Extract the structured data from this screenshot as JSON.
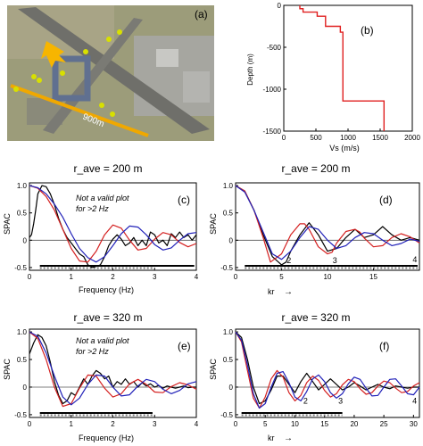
{
  "chart_data": [
    {
      "id": "a",
      "type": "image",
      "panel_label": "(a)",
      "annotation": "900m",
      "colors": {
        "ground": "#9a9a78",
        "runway": "#6f6f6a",
        "array_line": "#f0a800",
        "arrow": "#f7b500",
        "markers": "#d8e000"
      }
    },
    {
      "id": "b",
      "type": "line",
      "panel_label": "(b)",
      "xlabel": "Vs (m/s)",
      "ylabel": "Depth (m)",
      "xlim": [
        0,
        2000
      ],
      "ylim": [
        -1500,
        0
      ],
      "xticks": [
        "0",
        "500",
        "1000",
        "1500",
        "2000"
      ],
      "yticks": [
        "-1500",
        "-1000",
        "-500",
        "0"
      ],
      "color": "#e02020",
      "x": [
        250,
        250,
        300,
        300,
        520,
        520,
        650,
        650,
        880,
        880,
        920,
        920,
        1560,
        1560
      ],
      "y": [
        0,
        -40,
        -40,
        -80,
        -80,
        -130,
        -130,
        -250,
        -250,
        -320,
        -320,
        -1140,
        -1140,
        -1500
      ]
    },
    {
      "id": "c",
      "type": "line",
      "title": "r_ave = 200 m",
      "panel_label": "(c)",
      "note": [
        "Not a valid plot",
        "for >2 Hz"
      ],
      "xlabel": "Frequency (Hz)",
      "ylabel": "SPAC",
      "xlim": [
        0,
        4
      ],
      "ylim": [
        -0.55,
        1.05
      ],
      "xticks": [
        "0",
        "1",
        "2",
        "3",
        "4"
      ],
      "yticks": [
        "-0.5",
        "0",
        "0.5",
        "1.0"
      ],
      "range_bars": [
        [
          0.25,
          3.95
        ],
        [
          0.25,
          2.95
        ]
      ],
      "series": [
        {
          "color": "#000000",
          "x": [
            0.0,
            0.05,
            0.1,
            0.15,
            0.2,
            0.3,
            0.4,
            0.5,
            0.6,
            0.7,
            0.8,
            0.9,
            1.0,
            1.1,
            1.2,
            1.3,
            1.4,
            1.5,
            1.6,
            1.7,
            1.8,
            1.9,
            2.0,
            2.1,
            2.2,
            2.3,
            2.4,
            2.5,
            2.6,
            2.7,
            2.8,
            2.9,
            3.0,
            3.1,
            3.2,
            3.3,
            3.4,
            3.5,
            3.6,
            3.7,
            3.8,
            3.9,
            4.0
          ],
          "y": [
            0.05,
            0.1,
            0.3,
            0.55,
            0.85,
            1.0,
            0.98,
            0.85,
            0.65,
            0.4,
            0.2,
            0.05,
            -0.05,
            -0.15,
            -0.25,
            -0.3,
            -0.45,
            -0.5,
            -0.48,
            -0.45,
            -0.3,
            -0.1,
            0.02,
            0.1,
            0.02,
            -0.1,
            -0.05,
            0.05,
            -0.1,
            0.0,
            -0.1,
            0.15,
            0.1,
            -0.05,
            0.0,
            -0.1,
            0.12,
            0.05,
            0.15,
            0.05,
            0.1,
            0.0,
            0.1
          ]
        },
        {
          "color": "#d42020",
          "x": [
            0.0,
            0.2,
            0.4,
            0.6,
            0.8,
            1.0,
            1.2,
            1.4,
            1.6,
            1.8,
            2.0,
            2.2,
            2.4,
            2.6,
            2.8,
            3.0,
            3.2,
            3.4,
            3.6,
            3.8,
            4.0
          ],
          "y": [
            1.0,
            0.95,
            0.8,
            0.55,
            0.2,
            -0.15,
            -0.38,
            -0.4,
            -0.2,
            0.1,
            0.28,
            0.22,
            0.0,
            -0.18,
            -0.15,
            0.02,
            0.14,
            0.1,
            -0.04,
            -0.12,
            -0.06
          ]
        },
        {
          "color": "#2020b8",
          "x": [
            0.0,
            0.2,
            0.4,
            0.6,
            0.8,
            1.0,
            1.2,
            1.4,
            1.6,
            1.8,
            2.0,
            2.2,
            2.4,
            2.6,
            2.8,
            3.0,
            3.2,
            3.4,
            3.6,
            3.8,
            4.0
          ],
          "y": [
            1.0,
            0.96,
            0.85,
            0.66,
            0.42,
            0.12,
            -0.15,
            -0.32,
            -0.4,
            -0.3,
            -0.1,
            0.12,
            0.26,
            0.24,
            0.1,
            -0.08,
            -0.18,
            -0.14,
            0.0,
            0.12,
            0.14
          ]
        }
      ]
    },
    {
      "id": "d",
      "type": "line",
      "title": "r_ave = 200 m",
      "panel_label": "(d)",
      "xlabel": "kr",
      "ylabel": "SPAC",
      "xlim": [
        0,
        20
      ],
      "ylim": [
        -0.55,
        1.05
      ],
      "xticks": [
        "0",
        "5",
        "10",
        "15"
      ],
      "yticks": [
        "-0.5",
        "0",
        "0.5",
        "1.0"
      ],
      "range_bars": [
        [
          1.0,
          19.8
        ],
        [
          1.0,
          19.8
        ]
      ],
      "point_labels": [
        {
          "x": 5.8,
          "y": -0.42,
          "text": "2"
        },
        {
          "x": 10.8,
          "y": -0.42,
          "text": "3"
        },
        {
          "x": 19.5,
          "y": -0.4,
          "text": "4"
        }
      ],
      "series": [
        {
          "color": "#000000",
          "x": [
            0,
            1,
            2,
            3,
            4,
            5,
            5.5,
            6,
            7,
            8,
            9,
            10,
            11,
            12,
            13,
            14,
            15,
            16,
            17,
            18,
            19,
            20
          ],
          "y": [
            1.0,
            0.9,
            0.55,
            0.1,
            -0.3,
            -0.45,
            -0.4,
            -0.2,
            0.1,
            0.32,
            0.1,
            -0.2,
            -0.15,
            0.05,
            0.2,
            0.05,
            0.1,
            0.25,
            0.1,
            0.0,
            0.05,
            0.0
          ]
        },
        {
          "color": "#d42020",
          "x": [
            0,
            1,
            2,
            3,
            3.8,
            5,
            6,
            7,
            7.5,
            8,
            9,
            10,
            10.5,
            11,
            12,
            13,
            13.5,
            14,
            15,
            16,
            17,
            18,
            19,
            20
          ],
          "y": [
            1.0,
            0.9,
            0.55,
            0.05,
            -0.4,
            -0.25,
            0.1,
            0.3,
            0.3,
            0.2,
            -0.12,
            -0.25,
            -0.22,
            -0.05,
            0.16,
            0.2,
            0.15,
            0.04,
            -0.12,
            -0.1,
            0.05,
            0.12,
            0.06,
            -0.05
          ]
        },
        {
          "color": "#2020b8",
          "x": [
            0,
            1,
            2,
            3,
            4,
            5,
            6,
            7,
            8,
            9,
            10,
            11,
            12,
            13,
            14,
            15,
            16,
            17,
            18,
            19,
            20
          ],
          "y": [
            1.0,
            0.88,
            0.55,
            0.15,
            -0.25,
            -0.35,
            -0.2,
            0.05,
            0.25,
            0.2,
            0.0,
            -0.15,
            -0.1,
            0.05,
            0.14,
            0.12,
            0.0,
            -0.1,
            -0.06,
            0.02,
            -0.02
          ]
        }
      ]
    },
    {
      "id": "e",
      "type": "line",
      "title": "r_ave = 320 m",
      "panel_label": "(e)",
      "note": [
        "Not a valid plot",
        "for >2 Hz"
      ],
      "xlabel": "Frequency (Hz)",
      "ylabel": "SPAC",
      "xlim": [
        0,
        4
      ],
      "ylim": [
        -0.55,
        1.05
      ],
      "xticks": [
        "0",
        "1",
        "2",
        "3",
        "4"
      ],
      "yticks": [
        "-0.5",
        "0",
        "0.5",
        "1.0"
      ],
      "range_bars": [
        [
          0.25,
          2.95
        ],
        [
          0.25,
          2.95
        ]
      ],
      "series": [
        {
          "color": "#000000",
          "x": [
            0.0,
            0.1,
            0.2,
            0.3,
            0.4,
            0.5,
            0.6,
            0.7,
            0.8,
            0.9,
            1.0,
            1.1,
            1.2,
            1.3,
            1.4,
            1.5,
            1.6,
            1.7,
            1.8,
            1.9,
            2.0,
            2.1,
            2.2,
            2.3,
            2.4,
            2.5,
            2.6,
            2.7,
            2.8,
            2.9,
            3.0,
            3.1,
            3.2,
            3.3,
            3.4,
            3.5,
            3.6,
            3.7,
            3.8,
            3.9,
            4.0
          ],
          "y": [
            0.6,
            0.8,
            0.95,
            0.9,
            0.75,
            0.45,
            0.1,
            -0.15,
            -0.3,
            -0.25,
            -0.1,
            -0.15,
            0.0,
            0.15,
            0.05,
            0.2,
            0.3,
            0.25,
            0.15,
            0.2,
            0.0,
            0.1,
            0.05,
            0.15,
            0.05,
            0.1,
            0.0,
            0.08,
            0.02,
            0.06,
            0.0,
            0.03,
            -0.02,
            0.02,
            0.0,
            -0.02,
            0.0,
            0.02,
            -0.01,
            0.0,
            0.0
          ]
        },
        {
          "color": "#d42020",
          "x": [
            0.0,
            0.2,
            0.4,
            0.6,
            0.8,
            1.0,
            1.2,
            1.4,
            1.6,
            1.8,
            2.0,
            2.2,
            2.4,
            2.6,
            2.8,
            3.0,
            3.2,
            3.4,
            3.6,
            3.8,
            4.0
          ],
          "y": [
            1.0,
            0.88,
            0.5,
            0.0,
            -0.35,
            -0.3,
            -0.02,
            0.22,
            0.2,
            -0.02,
            -0.18,
            -0.12,
            0.06,
            0.14,
            0.05,
            -0.09,
            -0.1,
            0.01,
            0.08,
            0.04,
            -0.04
          ]
        },
        {
          "color": "#2020b8",
          "x": [
            0.0,
            0.2,
            0.4,
            0.6,
            0.8,
            1.0,
            1.2,
            1.4,
            1.6,
            1.8,
            2.0,
            2.2,
            2.4,
            2.6,
            2.8,
            3.0,
            3.2,
            3.4,
            3.6,
            3.8,
            4.0
          ],
          "y": [
            1.0,
            0.92,
            0.62,
            0.2,
            -0.18,
            -0.32,
            -0.2,
            0.05,
            0.22,
            0.2,
            0.0,
            -0.16,
            -0.14,
            0.02,
            0.14,
            0.1,
            -0.04,
            -0.12,
            -0.06,
            0.06,
            0.1
          ]
        }
      ]
    },
    {
      "id": "f",
      "type": "line",
      "title": "r_ave = 320 m",
      "panel_label": "(f)",
      "xlabel": "kr",
      "ylabel": "SPAC",
      "xlim": [
        0,
        31
      ],
      "ylim": [
        -0.55,
        1.05
      ],
      "xticks": [
        "0",
        "5",
        "10",
        "15",
        "20",
        "25",
        "30"
      ],
      "yticks": [
        "-0.5",
        "0",
        "0.5",
        "1.0"
      ],
      "range_bars": [
        [
          1.0,
          18.0
        ],
        [
          1.0,
          18.0
        ]
      ],
      "point_labels": [
        {
          "x": 11.8,
          "y": -0.3,
          "text": "2"
        },
        {
          "x": 17.7,
          "y": -0.3,
          "text": "3"
        },
        {
          "x": 30.2,
          "y": -0.3,
          "text": "4"
        }
      ],
      "series": [
        {
          "color": "#000000",
          "x": [
            0,
            1,
            2,
            3,
            4,
            5,
            6,
            7,
            8,
            9,
            10,
            11,
            12,
            13,
            14,
            15,
            16,
            17,
            18,
            19,
            20,
            21,
            22,
            23,
            24,
            25,
            26,
            27,
            28,
            29,
            30,
            31
          ],
          "y": [
            1.0,
            0.9,
            0.5,
            0.0,
            -0.3,
            -0.25,
            -0.05,
            0.2,
            0.2,
            0.05,
            -0.1,
            0.1,
            0.25,
            0.1,
            -0.05,
            0.05,
            0.15,
            0.05,
            -0.05,
            0.0,
            0.08,
            0.02,
            -0.05,
            0.0,
            0.05,
            0.0,
            -0.03,
            0.02,
            0.0,
            -0.02,
            0.0,
            0.0
          ]
        },
        {
          "color": "#d42020",
          "x": [
            0,
            1,
            2,
            3,
            4,
            5,
            6,
            7,
            8,
            9,
            10,
            11,
            12,
            13,
            14,
            15,
            16,
            17,
            18,
            19,
            20,
            21,
            22,
            23,
            24,
            25,
            26,
            27,
            28,
            29,
            30,
            31
          ],
          "y": [
            1.0,
            0.82,
            0.3,
            -0.2,
            -0.38,
            -0.18,
            0.15,
            0.3,
            0.18,
            -0.1,
            -0.25,
            -0.15,
            0.08,
            0.2,
            0.12,
            -0.06,
            -0.18,
            -0.12,
            0.04,
            0.14,
            0.1,
            -0.03,
            -0.13,
            -0.1,
            0.02,
            0.11,
            0.08,
            -0.02,
            -0.1,
            -0.08,
            0.02,
            0.08
          ]
        },
        {
          "color": "#2020b8",
          "x": [
            0,
            1,
            2,
            3,
            4,
            5,
            6,
            7,
            8,
            9,
            10,
            11,
            12,
            13,
            14,
            15,
            16,
            17,
            18,
            19,
            20,
            21,
            22,
            23,
            24,
            25,
            26,
            27,
            28,
            29,
            30,
            31
          ],
          "y": [
            1.0,
            0.85,
            0.4,
            -0.12,
            -0.38,
            -0.3,
            0.0,
            0.25,
            0.28,
            0.08,
            -0.18,
            -0.25,
            -0.08,
            0.15,
            0.22,
            0.1,
            -0.1,
            -0.2,
            -0.12,
            0.06,
            0.18,
            0.14,
            -0.02,
            -0.16,
            -0.15,
            0.0,
            0.14,
            0.15,
            0.02,
            -0.12,
            -0.14,
            0.0
          ]
        }
      ]
    }
  ]
}
